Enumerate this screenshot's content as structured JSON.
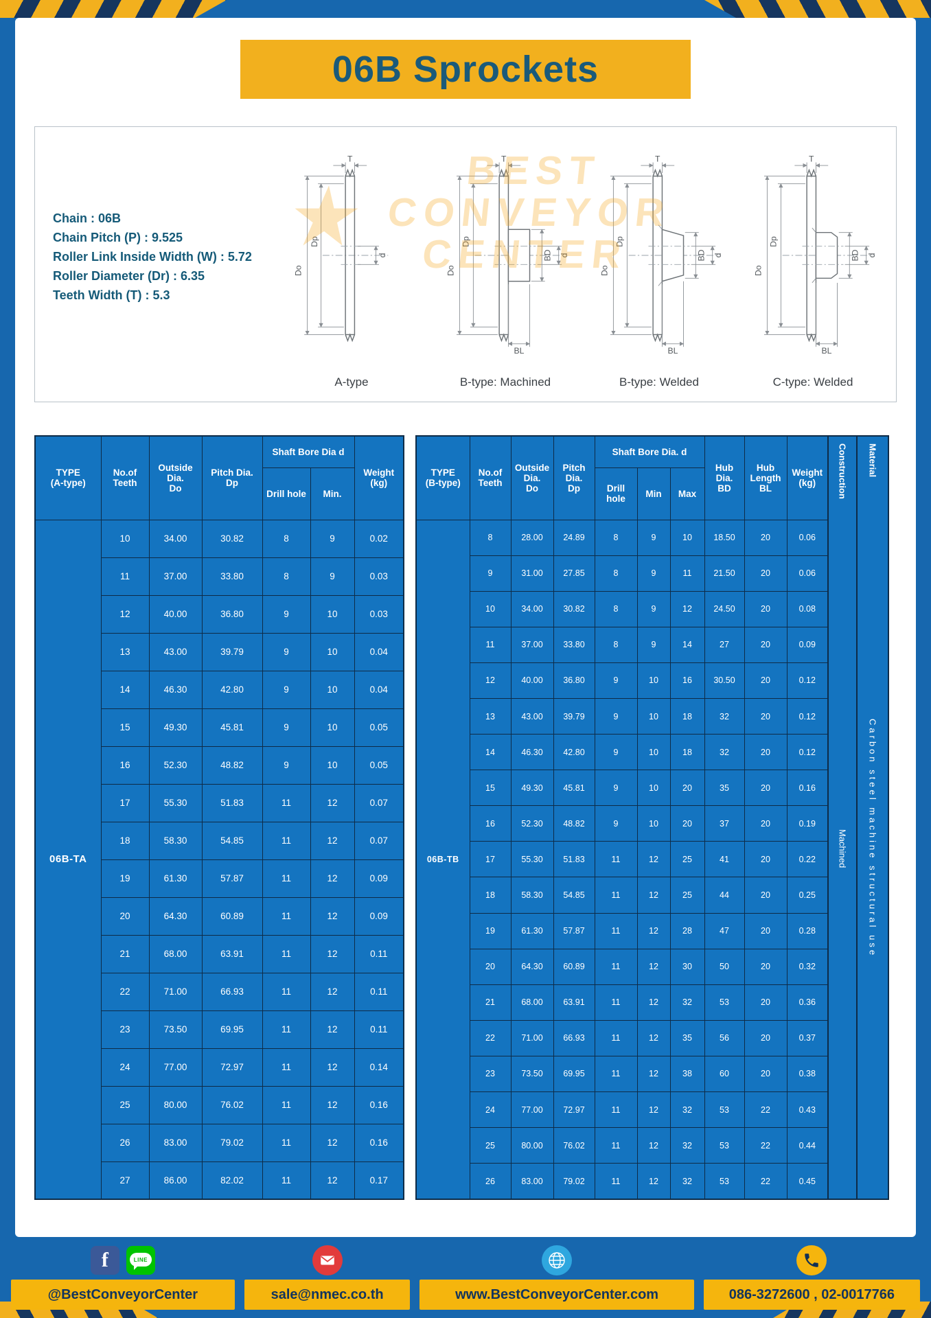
{
  "theme": {
    "frame_blue": "#1767ae",
    "table_blue": "#1474c0",
    "grid_navy": "#0e2b47",
    "accent_yellow": "#f2b01e",
    "footer_yellow": "#f5b50d",
    "ink_teal": "#1a5a7a"
  },
  "title": "06B Sprockets",
  "specs": [
    "Chain : 06B",
    "Chain Pitch (P) : 9.525",
    "Roller Link Inside Width (W) : 5.72",
    "Roller Diameter (Dr) : 6.35",
    "Teeth Width (T) : 5.3"
  ],
  "drawings": {
    "watermark": {
      "star": "★",
      "lines": [
        "BEST",
        "CONVEYOR",
        "CENTER"
      ]
    },
    "items": [
      {
        "label": "A-type",
        "dims": {
          "t": "T",
          "do": "Do",
          "dp": "Dp",
          "d": "d"
        }
      },
      {
        "label": "B-type: Machined",
        "dims": {
          "t": "T",
          "do": "Do",
          "dp": "Dp",
          "d": "d",
          "bd": "BD",
          "bl": "BL"
        }
      },
      {
        "label": "B-type: Welded",
        "dims": {
          "t": "T",
          "do": "Do",
          "dp": "Dp",
          "d": "d",
          "bd": "BD",
          "bl": "BL"
        }
      },
      {
        "label": "C-type: Welded",
        "dims": {
          "t": "T",
          "do": "Do",
          "dp": "Dp",
          "d": "d",
          "bd": "BD",
          "bl": "BL"
        }
      }
    ]
  },
  "table_a": {
    "type": "06B-TA",
    "headers": {
      "type": "TYPE\n(A-type)",
      "teeth": "No.of\nTeeth",
      "outside": "Outside\nDia.\nDo",
      "pitch": "Pitch Dia.\nDp",
      "bore_group": "Shaft Bore Dia d",
      "drill": "Drill hole",
      "min": "Min.",
      "weight": "Weight\n(kg)"
    },
    "rows": [
      [
        "10",
        "34.00",
        "30.82",
        "8",
        "9",
        "0.02"
      ],
      [
        "11",
        "37.00",
        "33.80",
        "8",
        "9",
        "0.03"
      ],
      [
        "12",
        "40.00",
        "36.80",
        "9",
        "10",
        "0.03"
      ],
      [
        "13",
        "43.00",
        "39.79",
        "9",
        "10",
        "0.04"
      ],
      [
        "14",
        "46.30",
        "42.80",
        "9",
        "10",
        "0.04"
      ],
      [
        "15",
        "49.30",
        "45.81",
        "9",
        "10",
        "0.05"
      ],
      [
        "16",
        "52.30",
        "48.82",
        "9",
        "10",
        "0.05"
      ],
      [
        "17",
        "55.30",
        "51.83",
        "11",
        "12",
        "0.07"
      ],
      [
        "18",
        "58.30",
        "54.85",
        "11",
        "12",
        "0.07"
      ],
      [
        "19",
        "61.30",
        "57.87",
        "11",
        "12",
        "0.09"
      ],
      [
        "20",
        "64.30",
        "60.89",
        "11",
        "12",
        "0.09"
      ],
      [
        "21",
        "68.00",
        "63.91",
        "11",
        "12",
        "0.11"
      ],
      [
        "22",
        "71.00",
        "66.93",
        "11",
        "12",
        "0.11"
      ],
      [
        "23",
        "73.50",
        "69.95",
        "11",
        "12",
        "0.11"
      ],
      [
        "24",
        "77.00",
        "72.97",
        "11",
        "12",
        "0.14"
      ],
      [
        "25",
        "80.00",
        "76.02",
        "11",
        "12",
        "0.16"
      ],
      [
        "26",
        "83.00",
        "79.02",
        "11",
        "12",
        "0.16"
      ],
      [
        "27",
        "86.00",
        "82.02",
        "11",
        "12",
        "0.17"
      ]
    ]
  },
  "table_b": {
    "type": "06B-TB",
    "headers": {
      "type": "TYPE\n(B-type)",
      "teeth": "No.of\nTeeth",
      "outside": "Outside\nDia.\nDo",
      "pitch": "Pitch\nDia.\nDp",
      "bore_group": "Shaft Bore Dia.  d",
      "drill": "Drill hole",
      "min": "Min",
      "max": "Max",
      "hub_dia": "Hub\nDia.\nBD",
      "hub_len": "Hub\nLength\nBL",
      "weight": "Weight\n(kg)",
      "construction": "Construction",
      "material": "Material"
    },
    "construction_value": "Machined",
    "material_value": "Carbon steel machine structural use",
    "rows": [
      [
        "8",
        "28.00",
        "24.89",
        "8",
        "9",
        "10",
        "18.50",
        "20",
        "0.06"
      ],
      [
        "9",
        "31.00",
        "27.85",
        "8",
        "9",
        "11",
        "21.50",
        "20",
        "0.06"
      ],
      [
        "10",
        "34.00",
        "30.82",
        "8",
        "9",
        "12",
        "24.50",
        "20",
        "0.08"
      ],
      [
        "11",
        "37.00",
        "33.80",
        "8",
        "9",
        "14",
        "27",
        "20",
        "0.09"
      ],
      [
        "12",
        "40.00",
        "36.80",
        "9",
        "10",
        "16",
        "30.50",
        "20",
        "0.12"
      ],
      [
        "13",
        "43.00",
        "39.79",
        "9",
        "10",
        "18",
        "32",
        "20",
        "0.12"
      ],
      [
        "14",
        "46.30",
        "42.80",
        "9",
        "10",
        "18",
        "32",
        "20",
        "0.12"
      ],
      [
        "15",
        "49.30",
        "45.81",
        "9",
        "10",
        "20",
        "35",
        "20",
        "0.16"
      ],
      [
        "16",
        "52.30",
        "48.82",
        "9",
        "10",
        "20",
        "37",
        "20",
        "0.19"
      ],
      [
        "17",
        "55.30",
        "51.83",
        "11",
        "12",
        "25",
        "41",
        "20",
        "0.22"
      ],
      [
        "18",
        "58.30",
        "54.85",
        "11",
        "12",
        "25",
        "44",
        "20",
        "0.25"
      ],
      [
        "19",
        "61.30",
        "57.87",
        "11",
        "12",
        "28",
        "47",
        "20",
        "0.28"
      ],
      [
        "20",
        "64.30",
        "60.89",
        "11",
        "12",
        "30",
        "50",
        "20",
        "0.32"
      ],
      [
        "21",
        "68.00",
        "63.91",
        "11",
        "12",
        "32",
        "53",
        "20",
        "0.36"
      ],
      [
        "22",
        "71.00",
        "66.93",
        "11",
        "12",
        "35",
        "56",
        "20",
        "0.37"
      ],
      [
        "23",
        "73.50",
        "69.95",
        "11",
        "12",
        "38",
        "60",
        "20",
        "0.38"
      ],
      [
        "24",
        "77.00",
        "72.97",
        "11",
        "12",
        "32",
        "53",
        "22",
        "0.43"
      ],
      [
        "25",
        "80.00",
        "76.02",
        "11",
        "12",
        "32",
        "53",
        "22",
        "0.44"
      ],
      [
        "26",
        "83.00",
        "79.02",
        "11",
        "12",
        "32",
        "53",
        "22",
        "0.45"
      ]
    ]
  },
  "footer": {
    "facebook_glyph": "f",
    "line_label": "LINE",
    "segments": [
      {
        "text": "@BestConveyorCenter"
      },
      {
        "text": "sale@nmec.co.th"
      },
      {
        "text": "www.BestConveyorCenter.com"
      },
      {
        "text": "086-3272600 , 02-0017766"
      }
    ]
  }
}
